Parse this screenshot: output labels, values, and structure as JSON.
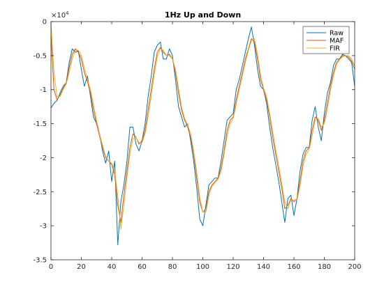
{
  "chart_data": {
    "type": "line",
    "title": "1Hz Up and Down",
    "xlabel": "",
    "ylabel": "",
    "y_exponent_label": "×10",
    "y_exponent_power": "4",
    "xlim": [
      0,
      200
    ],
    "ylim": [
      -3.5,
      0
    ],
    "x_ticks": [
      0,
      20,
      40,
      60,
      80,
      100,
      120,
      140,
      160,
      180,
      200
    ],
    "y_ticks": [
      0,
      -0.5,
      -1,
      -1.5,
      -2,
      -2.5,
      -3,
      -3.5
    ],
    "x_tick_labels": [
      "0",
      "20",
      "40",
      "60",
      "80",
      "100",
      "120",
      "140",
      "160",
      "180",
      "200"
    ],
    "y_tick_labels": [
      "0",
      "-0.5",
      "-1",
      "-1.5",
      "-2",
      "-2.5",
      "-3",
      "-3.5"
    ],
    "grid": false,
    "legend_position": "top-right",
    "series": [
      {
        "name": "Raw",
        "color": "#0072BD",
        "points": [
          [
            0,
            -1.27
          ],
          [
            2,
            -1.2
          ],
          [
            4,
            -1.16
          ],
          [
            6,
            -1.05
          ],
          [
            8,
            -0.95
          ],
          [
            10,
            -0.9
          ],
          [
            12,
            -0.6
          ],
          [
            14,
            -0.4
          ],
          [
            16,
            -0.45
          ],
          [
            18,
            -0.43
          ],
          [
            20,
            -0.7
          ],
          [
            22,
            -0.95
          ],
          [
            24,
            -0.8
          ],
          [
            26,
            -1.1
          ],
          [
            28,
            -1.4
          ],
          [
            30,
            -1.5
          ],
          [
            32,
            -1.65
          ],
          [
            34,
            -1.9
          ],
          [
            36,
            -2.08
          ],
          [
            38,
            -1.9
          ],
          [
            40,
            -2.35
          ],
          [
            42,
            -2.05
          ],
          [
            44,
            -3.28
          ],
          [
            46,
            -2.65
          ],
          [
            48,
            -2.4
          ],
          [
            50,
            -2.05
          ],
          [
            52,
            -1.55
          ],
          [
            54,
            -1.55
          ],
          [
            56,
            -1.8
          ],
          [
            58,
            -1.9
          ],
          [
            60,
            -1.75
          ],
          [
            62,
            -1.5
          ],
          [
            64,
            -1.1
          ],
          [
            66,
            -0.8
          ],
          [
            68,
            -0.45
          ],
          [
            70,
            -0.35
          ],
          [
            72,
            -0.3
          ],
          [
            74,
            -0.55
          ],
          [
            76,
            -0.55
          ],
          [
            78,
            -0.4
          ],
          [
            80,
            -0.5
          ],
          [
            82,
            -0.85
          ],
          [
            84,
            -1.25
          ],
          [
            86,
            -1.4
          ],
          [
            88,
            -1.55
          ],
          [
            90,
            -1.5
          ],
          [
            92,
            -1.75
          ],
          [
            94,
            -2.05
          ],
          [
            96,
            -2.45
          ],
          [
            98,
            -2.9
          ],
          [
            100,
            -3.0
          ],
          [
            102,
            -2.7
          ],
          [
            104,
            -2.4
          ],
          [
            106,
            -2.35
          ],
          [
            108,
            -2.3
          ],
          [
            110,
            -2.3
          ],
          [
            112,
            -2.05
          ],
          [
            114,
            -1.75
          ],
          [
            116,
            -1.45
          ],
          [
            118,
            -1.4
          ],
          [
            120,
            -1.35
          ],
          [
            122,
            -1.0
          ],
          [
            124,
            -0.85
          ],
          [
            126,
            -0.65
          ],
          [
            128,
            -0.45
          ],
          [
            130,
            -0.25
          ],
          [
            132,
            -0.08
          ],
          [
            134,
            -0.35
          ],
          [
            136,
            -0.7
          ],
          [
            138,
            -0.95
          ],
          [
            140,
            -1.0
          ],
          [
            142,
            -1.2
          ],
          [
            144,
            -1.55
          ],
          [
            146,
            -1.85
          ],
          [
            148,
            -2.1
          ],
          [
            150,
            -2.35
          ],
          [
            152,
            -2.65
          ],
          [
            154,
            -2.95
          ],
          [
            156,
            -2.6
          ],
          [
            158,
            -2.55
          ],
          [
            160,
            -2.85
          ],
          [
            162,
            -2.6
          ],
          [
            164,
            -2.2
          ],
          [
            166,
            -1.95
          ],
          [
            168,
            -1.85
          ],
          [
            170,
            -1.85
          ],
          [
            172,
            -1.45
          ],
          [
            174,
            -1.25
          ],
          [
            176,
            -1.55
          ],
          [
            178,
            -1.75
          ],
          [
            180,
            -1.35
          ],
          [
            182,
            -1.05
          ],
          [
            184,
            -0.9
          ],
          [
            186,
            -0.65
          ],
          [
            188,
            -0.55
          ],
          [
            190,
            -0.55
          ],
          [
            192,
            -0.48
          ],
          [
            194,
            -0.5
          ],
          [
            196,
            -0.55
          ],
          [
            198,
            -0.6
          ],
          [
            200,
            -0.95
          ]
        ]
      },
      {
        "name": "MAF",
        "color": "#D95319",
        "points": [
          [
            0,
            -0.2
          ],
          [
            2,
            -1.0
          ],
          [
            4,
            -1.15
          ],
          [
            6,
            -1.08
          ],
          [
            8,
            -0.98
          ],
          [
            10,
            -0.9
          ],
          [
            12,
            -0.68
          ],
          [
            14,
            -0.48
          ],
          [
            16,
            -0.4
          ],
          [
            18,
            -0.45
          ],
          [
            20,
            -0.55
          ],
          [
            22,
            -0.75
          ],
          [
            24,
            -0.88
          ],
          [
            26,
            -1.05
          ],
          [
            28,
            -1.3
          ],
          [
            30,
            -1.5
          ],
          [
            32,
            -1.68
          ],
          [
            34,
            -1.85
          ],
          [
            36,
            -2.0
          ],
          [
            38,
            -2.05
          ],
          [
            40,
            -2.1
          ],
          [
            42,
            -2.25
          ],
          [
            44,
            -2.7
          ],
          [
            46,
            -2.95
          ],
          [
            48,
            -2.55
          ],
          [
            50,
            -2.2
          ],
          [
            52,
            -1.85
          ],
          [
            54,
            -1.65
          ],
          [
            56,
            -1.7
          ],
          [
            58,
            -1.8
          ],
          [
            60,
            -1.75
          ],
          [
            62,
            -1.6
          ],
          [
            64,
            -1.3
          ],
          [
            66,
            -1.0
          ],
          [
            68,
            -0.7
          ],
          [
            70,
            -0.45
          ],
          [
            72,
            -0.38
          ],
          [
            74,
            -0.45
          ],
          [
            76,
            -0.5
          ],
          [
            78,
            -0.48
          ],
          [
            80,
            -0.55
          ],
          [
            82,
            -0.75
          ],
          [
            84,
            -1.05
          ],
          [
            86,
            -1.3
          ],
          [
            88,
            -1.45
          ],
          [
            90,
            -1.55
          ],
          [
            92,
            -1.7
          ],
          [
            94,
            -1.95
          ],
          [
            96,
            -2.3
          ],
          [
            98,
            -2.65
          ],
          [
            100,
            -2.8
          ],
          [
            102,
            -2.75
          ],
          [
            104,
            -2.5
          ],
          [
            106,
            -2.4
          ],
          [
            108,
            -2.35
          ],
          [
            110,
            -2.3
          ],
          [
            112,
            -2.15
          ],
          [
            114,
            -1.9
          ],
          [
            116,
            -1.6
          ],
          [
            118,
            -1.45
          ],
          [
            120,
            -1.4
          ],
          [
            122,
            -1.15
          ],
          [
            124,
            -0.95
          ],
          [
            126,
            -0.75
          ],
          [
            128,
            -0.55
          ],
          [
            130,
            -0.4
          ],
          [
            132,
            -0.25
          ],
          [
            134,
            -0.3
          ],
          [
            136,
            -0.55
          ],
          [
            138,
            -0.85
          ],
          [
            140,
            -1.0
          ],
          [
            142,
            -1.15
          ],
          [
            144,
            -1.4
          ],
          [
            146,
            -1.7
          ],
          [
            148,
            -1.95
          ],
          [
            150,
            -2.2
          ],
          [
            152,
            -2.45
          ],
          [
            154,
            -2.75
          ],
          [
            156,
            -2.7
          ],
          [
            158,
            -2.6
          ],
          [
            160,
            -2.65
          ],
          [
            162,
            -2.6
          ],
          [
            164,
            -2.35
          ],
          [
            166,
            -2.05
          ],
          [
            168,
            -1.9
          ],
          [
            170,
            -1.85
          ],
          [
            172,
            -1.6
          ],
          [
            174,
            -1.4
          ],
          [
            176,
            -1.45
          ],
          [
            178,
            -1.6
          ],
          [
            180,
            -1.45
          ],
          [
            182,
            -1.2
          ],
          [
            184,
            -0.95
          ],
          [
            186,
            -0.75
          ],
          [
            188,
            -0.6
          ],
          [
            190,
            -0.55
          ],
          [
            192,
            -0.5
          ],
          [
            194,
            -0.5
          ],
          [
            196,
            -0.52
          ],
          [
            198,
            -0.58
          ],
          [
            200,
            -0.7
          ]
        ]
      },
      {
        "name": "FIR",
        "color": "#EDB120",
        "points": [
          [
            0,
            0
          ],
          [
            2,
            -0.75
          ],
          [
            4,
            -1.1
          ],
          [
            6,
            -1.1
          ],
          [
            8,
            -1.0
          ],
          [
            10,
            -0.92
          ],
          [
            12,
            -0.75
          ],
          [
            14,
            -0.55
          ],
          [
            16,
            -0.42
          ],
          [
            18,
            -0.42
          ],
          [
            20,
            -0.5
          ],
          [
            22,
            -0.68
          ],
          [
            24,
            -0.85
          ],
          [
            26,
            -1.0
          ],
          [
            28,
            -1.22
          ],
          [
            30,
            -1.45
          ],
          [
            32,
            -1.65
          ],
          [
            34,
            -1.82
          ],
          [
            36,
            -1.98
          ],
          [
            38,
            -2.05
          ],
          [
            40,
            -2.08
          ],
          [
            42,
            -2.2
          ],
          [
            44,
            -2.55
          ],
          [
            46,
            -3.05
          ],
          [
            48,
            -2.7
          ],
          [
            50,
            -2.3
          ],
          [
            52,
            -1.95
          ],
          [
            54,
            -1.72
          ],
          [
            56,
            -1.7
          ],
          [
            58,
            -1.78
          ],
          [
            60,
            -1.78
          ],
          [
            62,
            -1.65
          ],
          [
            64,
            -1.4
          ],
          [
            66,
            -1.1
          ],
          [
            68,
            -0.78
          ],
          [
            70,
            -0.52
          ],
          [
            72,
            -0.4
          ],
          [
            74,
            -0.42
          ],
          [
            76,
            -0.5
          ],
          [
            78,
            -0.5
          ],
          [
            80,
            -0.55
          ],
          [
            82,
            -0.7
          ],
          [
            84,
            -0.98
          ],
          [
            86,
            -1.25
          ],
          [
            88,
            -1.42
          ],
          [
            90,
            -1.52
          ],
          [
            92,
            -1.65
          ],
          [
            94,
            -1.9
          ],
          [
            96,
            -2.22
          ],
          [
            98,
            -2.58
          ],
          [
            100,
            -2.8
          ],
          [
            102,
            -2.8
          ],
          [
            104,
            -2.55
          ],
          [
            106,
            -2.42
          ],
          [
            108,
            -2.37
          ],
          [
            110,
            -2.32
          ],
          [
            112,
            -2.2
          ],
          [
            114,
            -1.95
          ],
          [
            116,
            -1.68
          ],
          [
            118,
            -1.5
          ],
          [
            120,
            -1.42
          ],
          [
            122,
            -1.22
          ],
          [
            124,
            -1.0
          ],
          [
            126,
            -0.8
          ],
          [
            128,
            -0.6
          ],
          [
            130,
            -0.42
          ],
          [
            132,
            -0.28
          ],
          [
            134,
            -0.25
          ],
          [
            136,
            -0.48
          ],
          [
            138,
            -0.78
          ],
          [
            140,
            -0.98
          ],
          [
            142,
            -1.1
          ],
          [
            144,
            -1.35
          ],
          [
            146,
            -1.62
          ],
          [
            148,
            -1.88
          ],
          [
            150,
            -2.12
          ],
          [
            152,
            -2.38
          ],
          [
            154,
            -2.65
          ],
          [
            156,
            -2.75
          ],
          [
            158,
            -2.62
          ],
          [
            160,
            -2.62
          ],
          [
            162,
            -2.62
          ],
          [
            164,
            -2.42
          ],
          [
            166,
            -2.12
          ],
          [
            168,
            -1.95
          ],
          [
            170,
            -1.88
          ],
          [
            172,
            -1.68
          ],
          [
            174,
            -1.45
          ],
          [
            176,
            -1.42
          ],
          [
            178,
            -1.55
          ],
          [
            180,
            -1.5
          ],
          [
            182,
            -1.28
          ],
          [
            184,
            -1.02
          ],
          [
            186,
            -0.8
          ],
          [
            188,
            -0.64
          ],
          [
            190,
            -0.56
          ],
          [
            192,
            -0.52
          ],
          [
            194,
            -0.5
          ],
          [
            196,
            -0.5
          ],
          [
            198,
            -0.55
          ],
          [
            200,
            -0.65
          ]
        ]
      }
    ]
  }
}
